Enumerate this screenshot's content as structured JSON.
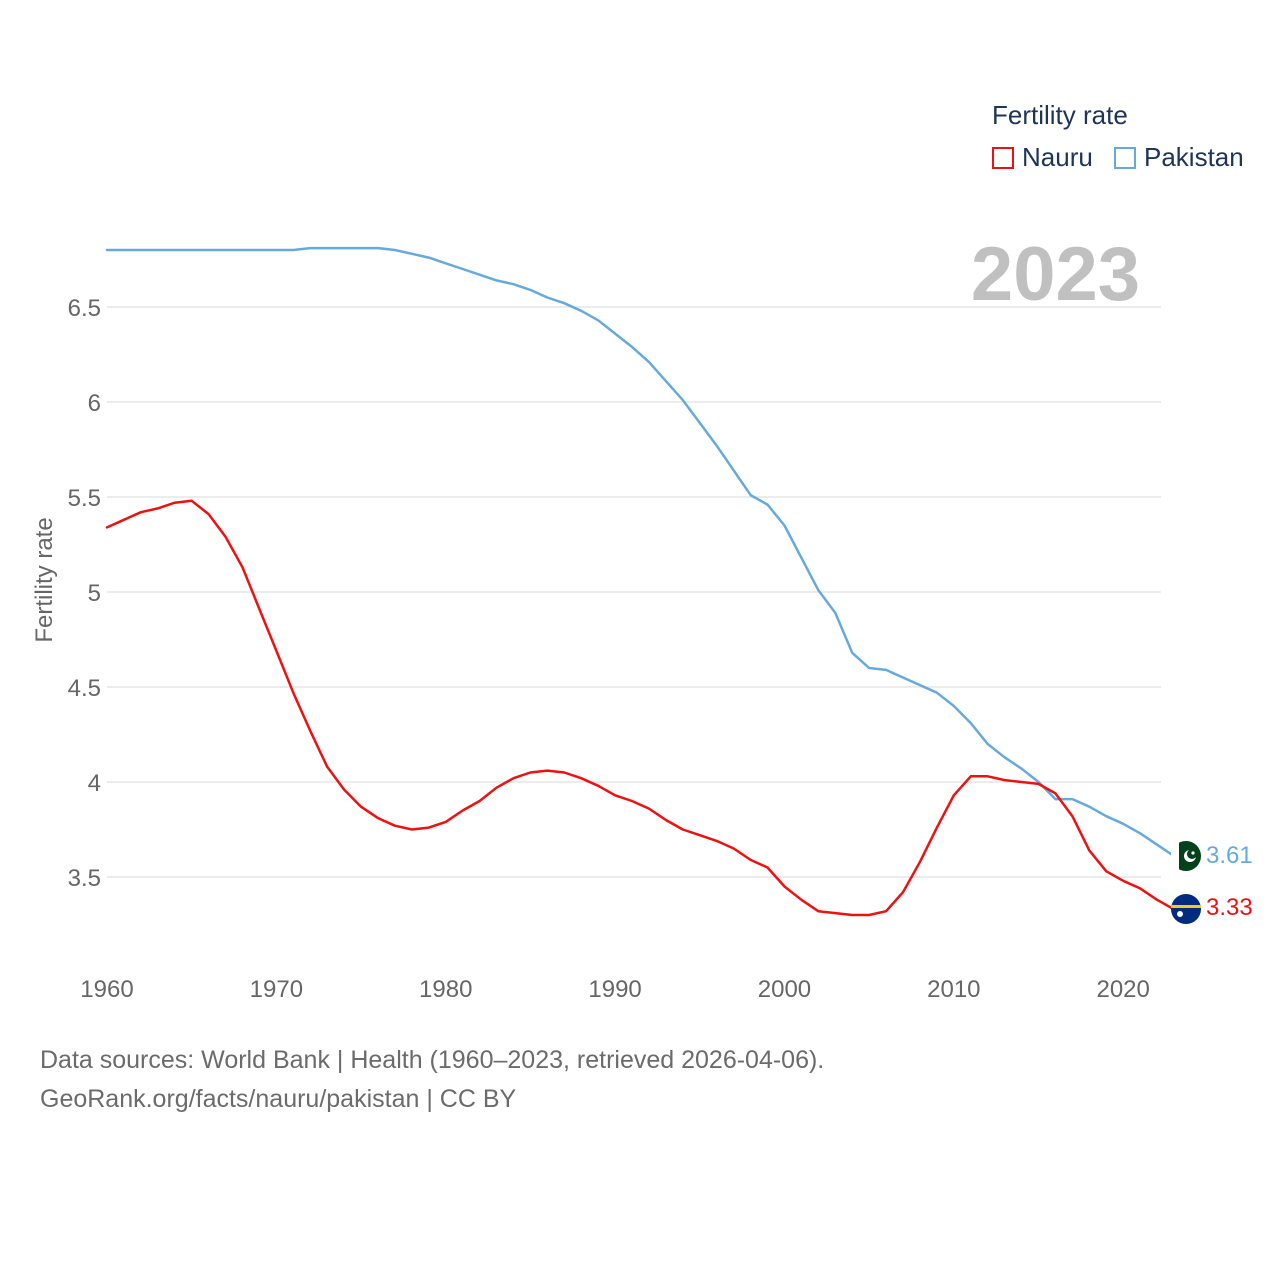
{
  "colors": {
    "nauru": "#ee1111",
    "pakistan": "#66aadd",
    "grid": "#e6e6e6",
    "axis_text": "#666666",
    "year_watermark": "#c0c0c0"
  },
  "legend": {
    "title": "Fertility rate",
    "items": [
      "Nauru",
      "Pakistan"
    ]
  },
  "watermark_year": "2023",
  "end_labels": {
    "nauru": "3.33",
    "pakistan": "3.61"
  },
  "flags": {
    "nauru": "nauru-flag-icon",
    "pakistan": "pakistan-flag-icon"
  },
  "source": {
    "line1": "Data sources: World Bank | Health (1960–2023, retrieved 2026-04-06).",
    "line2": "GeoRank.org/facts/nauru/pakistan | CC BY"
  },
  "chart_data": {
    "type": "line",
    "title": "",
    "xlabel": "",
    "ylabel": "Fertility rate",
    "xlim": [
      1960,
      2023
    ],
    "ylim": [
      3.2,
      6.9
    ],
    "x_ticks": [
      1960,
      1970,
      1980,
      1990,
      2000,
      2010,
      2020
    ],
    "y_ticks": [
      3.5,
      4,
      4.5,
      5,
      5.5,
      6,
      6.5
    ],
    "y_tick_labels": [
      "3.5",
      "4",
      "4.5",
      "5",
      "5.5",
      "6",
      "6.5"
    ],
    "x": [
      1960,
      1961,
      1962,
      1963,
      1964,
      1965,
      1966,
      1967,
      1968,
      1969,
      1970,
      1971,
      1972,
      1973,
      1974,
      1975,
      1976,
      1977,
      1978,
      1979,
      1980,
      1981,
      1982,
      1983,
      1984,
      1985,
      1986,
      1987,
      1988,
      1989,
      1990,
      1991,
      1992,
      1993,
      1994,
      1995,
      1996,
      1997,
      1998,
      1999,
      2000,
      2001,
      2002,
      2003,
      2004,
      2005,
      2006,
      2007,
      2008,
      2009,
      2010,
      2011,
      2012,
      2013,
      2014,
      2015,
      2016,
      2017,
      2018,
      2019,
      2020,
      2021,
      2022,
      2023
    ],
    "series": [
      {
        "name": "Nauru",
        "values": [
          5.34,
          5.38,
          5.42,
          5.44,
          5.47,
          5.48,
          5.41,
          5.29,
          5.13,
          4.91,
          4.69,
          4.47,
          4.27,
          4.08,
          3.96,
          3.87,
          3.81,
          3.77,
          3.75,
          3.76,
          3.79,
          3.85,
          3.9,
          3.97,
          4.02,
          4.05,
          4.06,
          4.05,
          4.02,
          3.98,
          3.93,
          3.9,
          3.86,
          3.8,
          3.75,
          3.72,
          3.69,
          3.65,
          3.59,
          3.55,
          3.45,
          3.38,
          3.32,
          3.31,
          3.3,
          3.3,
          3.32,
          3.42,
          3.58,
          3.76,
          3.93,
          4.03,
          4.03,
          4.01,
          4.0,
          3.99,
          3.94,
          3.82,
          3.64,
          3.53,
          3.48,
          3.44,
          3.38,
          3.33
        ]
      },
      {
        "name": "Pakistan",
        "values": [
          6.8,
          6.8,
          6.8,
          6.8,
          6.8,
          6.8,
          6.8,
          6.8,
          6.8,
          6.8,
          6.8,
          6.8,
          6.81,
          6.81,
          6.81,
          6.81,
          6.81,
          6.8,
          6.78,
          6.76,
          6.73,
          6.7,
          6.67,
          6.64,
          6.62,
          6.59,
          6.55,
          6.52,
          6.48,
          6.43,
          6.36,
          6.29,
          6.21,
          6.11,
          6.01,
          5.89,
          5.77,
          5.64,
          5.51,
          5.46,
          5.35,
          5.18,
          5.01,
          4.89,
          4.68,
          4.6,
          4.59,
          4.55,
          4.51,
          4.47,
          4.4,
          4.31,
          4.2,
          4.13,
          4.07,
          4.0,
          3.91,
          3.91,
          3.87,
          3.82,
          3.78,
          3.73,
          3.67,
          3.61
        ]
      }
    ]
  }
}
